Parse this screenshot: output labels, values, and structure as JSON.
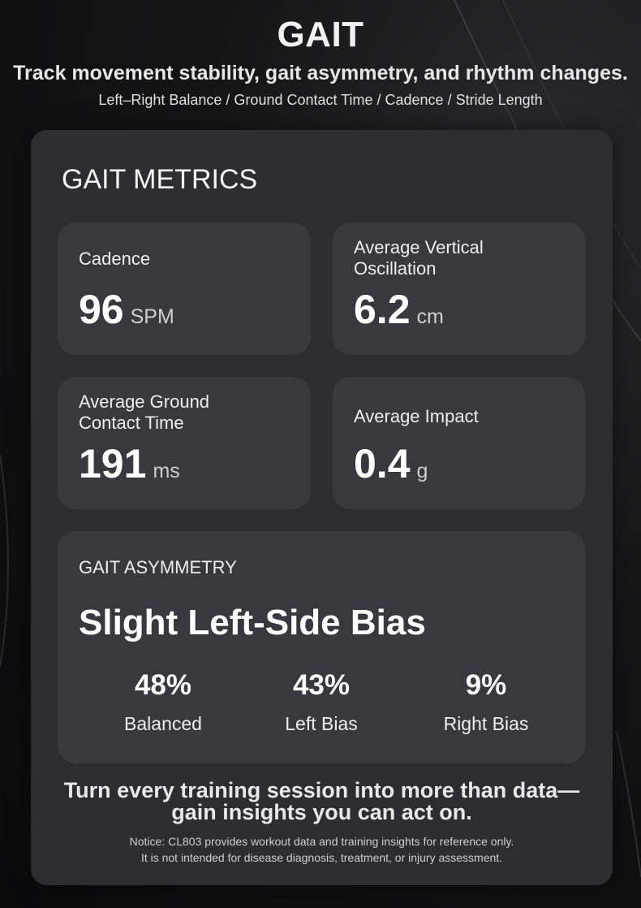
{
  "header": {
    "title": "GAIT",
    "subtitle": "Track movement stability, gait asymmetry, and rhythm changes.",
    "tagline": "Left–Right Balance / Ground Contact Time / Cadence / Stride Length"
  },
  "panel": {
    "title": "GAIT METRICS",
    "metrics": [
      {
        "label_line1": "Cadence",
        "label_line2": "",
        "value": "96",
        "unit": "SPM"
      },
      {
        "label_line1": "Average Vertical",
        "label_line2": "Oscillation",
        "value": "6.2",
        "unit": "cm"
      },
      {
        "label_line1": "Average Ground",
        "label_line2": "Contact Time",
        "value": "191",
        "unit": "ms"
      },
      {
        "label_line1": "Average Impact",
        "label_line2": "",
        "value": "0.4",
        "unit": "g"
      }
    ],
    "asymmetry": {
      "label": "GAIT ASYMMETRY",
      "result": "Slight Left-Side Bias",
      "stats": [
        {
          "percent": "48%",
          "name": "Balanced"
        },
        {
          "percent": "43%",
          "name": "Left Bias"
        },
        {
          "percent": "9%",
          "name": "Right Bias"
        }
      ]
    },
    "cta_line1": "Turn every training session into more than data—",
    "cta_line2": "gain insights you can act on.",
    "notice_line1": "Notice: CL803 provides workout data and training insights for reference only.",
    "notice_line2": "It is not intended for disease diagnosis, treatment, or injury assessment."
  }
}
